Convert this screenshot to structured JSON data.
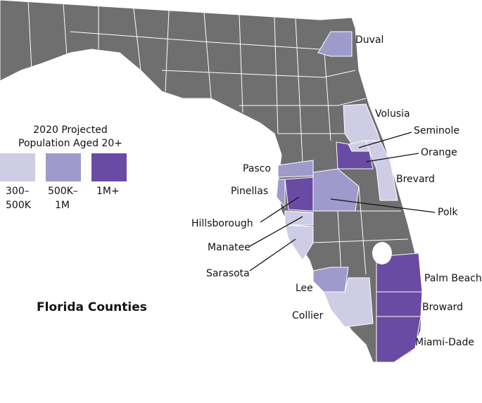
{
  "map": {
    "title": "Florida Counties",
    "legend": {
      "title_lines": [
        "2020 Projected",
        "Population Aged 20+"
      ],
      "items": [
        {
          "label_lines": [
            "300–",
            "500K"
          ],
          "color": "#cfcde6",
          "counties": [
            "Volusia",
            "Seminole",
            "Brevard",
            "Manatee",
            "Sarasota",
            "Collier"
          ]
        },
        {
          "label_lines": [
            "500K–",
            "1M"
          ],
          "color": "#9e9acb",
          "counties": [
            "Duval",
            "Pasco",
            "Pinellas",
            "Polk",
            "Lee"
          ]
        },
        {
          "label_lines": [
            "1M+"
          ],
          "color": "#6a4ba3",
          "counties": [
            "Orange",
            "Hillsborough",
            "Palm Beach",
            "Broward",
            "Miami-Dade"
          ]
        }
      ]
    }
  }
}
